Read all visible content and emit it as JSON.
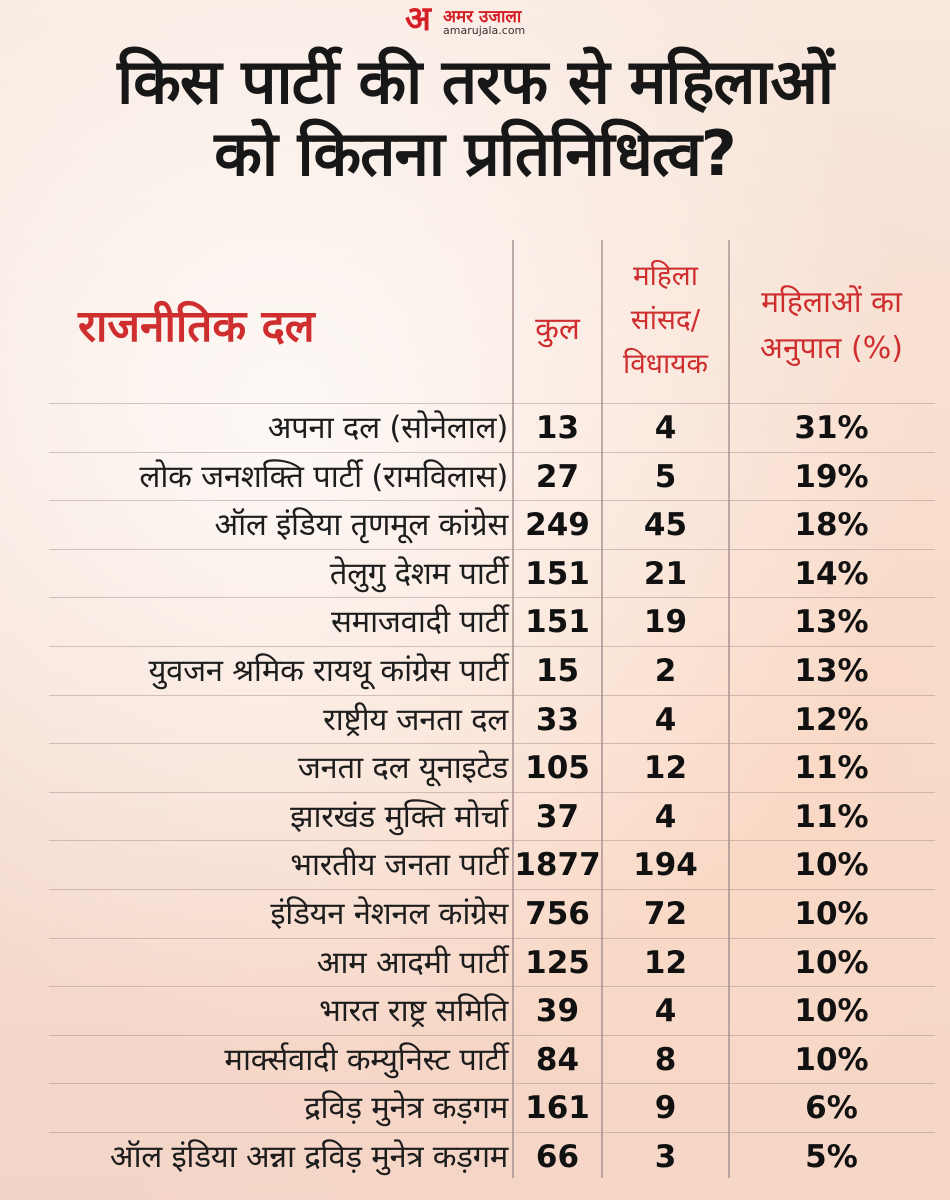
{
  "logo": {
    "mark": "अ",
    "name": "अमर उजाला",
    "site": "amarujala.com"
  },
  "title": {
    "line1": "किस पार्टी की तरफ से महिलाओं",
    "line2": "को कितना प्रतिनिधित्व?"
  },
  "headers": {
    "party": "राजनीतिक दल",
    "total": "कुल",
    "women_line1": "महिला",
    "women_line2": "सांसद/",
    "women_line3": "विधायक",
    "ratio_line1": "महिलाओं का",
    "ratio_line2": "अनुपात (%)"
  },
  "rows": [
    {
      "party": "अपना दल (सोनेलाल)",
      "total": "13",
      "women": "4",
      "ratio": "31%"
    },
    {
      "party": "लोक जनशक्ति पार्टी (रामविलास)",
      "total": "27",
      "women": "5",
      "ratio": "19%"
    },
    {
      "party": "ऑल इंडिया तृणमूल कांग्रेस",
      "total": "249",
      "women": "45",
      "ratio": "18%"
    },
    {
      "party": "तेलुगु देशम पार्टी",
      "total": "151",
      "women": "21",
      "ratio": "14%"
    },
    {
      "party": "समाजवादी पार्टी",
      "total": "151",
      "women": "19",
      "ratio": "13%"
    },
    {
      "party": "युवजन श्रमिक रायथू कांग्रेस पार्टी",
      "total": "15",
      "women": "2",
      "ratio": "13%"
    },
    {
      "party": "राष्ट्रीय जनता दल",
      "total": "33",
      "women": "4",
      "ratio": "12%"
    },
    {
      "party": "जनता दल यूनाइटेड",
      "total": "105",
      "women": "12",
      "ratio": "11%"
    },
    {
      "party": "झारखंड मुक्ति मोर्चा",
      "total": "37",
      "women": "4",
      "ratio": "11%"
    },
    {
      "party": "भारतीय जनता पार्टी",
      "total": "1877",
      "women": "194",
      "ratio": "10%"
    },
    {
      "party": "इंडियन नेशनल कांग्रेस",
      "total": "756",
      "women": "72",
      "ratio": "10%"
    },
    {
      "party": "आम आदमी पार्टी",
      "total": "125",
      "women": "12",
      "ratio": "10%"
    },
    {
      "party": "भारत राष्ट्र समिति",
      "total": "39",
      "women": "4",
      "ratio": "10%"
    },
    {
      "party": "मार्क्सवादी कम्युनिस्ट पार्टी",
      "total": "84",
      "women": "8",
      "ratio": "10%"
    },
    {
      "party": "द्रविड़ मुनेत्र कड़गम",
      "total": "161",
      "women": "9",
      "ratio": "6%"
    },
    {
      "party": "ऑल इंडिया अन्ना द्रविड़ मुनेत्र कड़गम",
      "total": "66",
      "women": "3",
      "ratio": "5%"
    }
  ]
}
